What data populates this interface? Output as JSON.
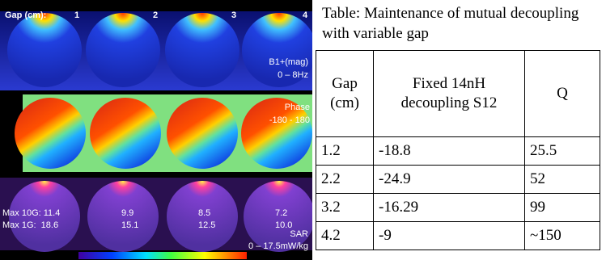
{
  "figure": {
    "gap_label": "Gap (cm):",
    "gaps": [
      "1",
      "2",
      "3",
      "4"
    ],
    "b1_label": "B1+(mag)",
    "b1_range": "0 – 8Hz",
    "phase_label": "Phase",
    "phase_range": "-180 - 180",
    "sar_max10g": [
      "Max 10G: 11.4",
      "9.9",
      "8.5",
      "7.2"
    ],
    "sar_max1g": [
      "Max 1G:  18.6",
      "15.1",
      "12.5",
      "10.0"
    ],
    "sar_label": "SAR",
    "sar_range": "0 – 17.5mW/kg"
  },
  "table": {
    "title": "Table: Maintenance of mutual decoupling with variable gap",
    "header": [
      "Gap (cm)",
      "Fixed 14nH decoupling S12",
      "Q"
    ],
    "rows": [
      [
        "1.2",
        "-18.8",
        "25.5"
      ],
      [
        "2.2",
        "-24.9",
        "52"
      ],
      [
        "3.2",
        "-16.29",
        "99"
      ],
      [
        "4.2",
        "-9",
        "~150"
      ]
    ]
  }
}
